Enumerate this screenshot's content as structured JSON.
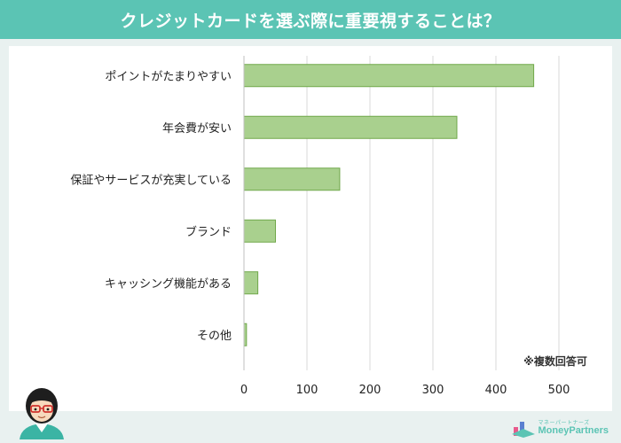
{
  "header": {
    "title": "クレジットカードを選ぶ際に重要視することは？"
  },
  "note": "※複数回答可",
  "logo": {
    "small_text": "マネーパートナーズ",
    "name": "MoneyPartners"
  },
  "colors": {
    "header_bg": "#5bc4b4",
    "bar_fill": "#a9d08e",
    "bar_stroke": "#70a84a",
    "grid": "#d9d9d9"
  },
  "chart_data": {
    "type": "bar",
    "orientation": "horizontal",
    "title": "クレジットカードを選ぶ際に重要視することは？",
    "categories": [
      "ポイントがたまりやすい",
      "年会費が安い",
      "保証やサービスが充実している",
      "ブランド",
      "キャッシング機能がある",
      "その他"
    ],
    "values": [
      460,
      338,
      152,
      50,
      22,
      4
    ],
    "xlim": [
      0,
      500
    ],
    "xticks": [
      "0",
      "100",
      "200",
      "300",
      "400",
      "500"
    ],
    "grid": true,
    "annotation": "※複数回答可"
  }
}
